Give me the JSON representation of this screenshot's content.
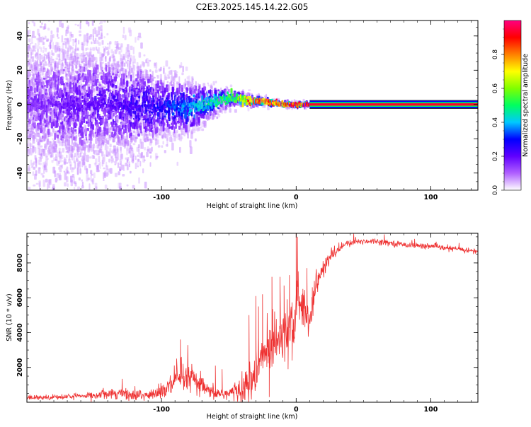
{
  "title": "C2E3.2025.145.14.22.G05",
  "chart_data": [
    {
      "type": "heatmap",
      "xlabel": "Height of straight line (km)",
      "ylabel": "Frequency (Hz)",
      "xlim": [
        -200,
        135
      ],
      "ylim": [
        -50,
        49
      ],
      "xticks": [
        -100,
        0,
        100
      ],
      "yticks": [
        -40,
        -20,
        0,
        20,
        40
      ],
      "colorbar": {
        "label": "Normalized spectral amplitude",
        "range": [
          0,
          1
        ],
        "ticks": [
          "0.0",
          "0.2",
          "0.4",
          "0.6",
          "0.8"
        ],
        "colormap": [
          "#ffffff",
          "#b060ff",
          "#6000ff",
          "#0000ff",
          "#00c8ff",
          "#00ff60",
          "#80ff00",
          "#ffff00",
          "#ff8000",
          "#ff0000",
          "#ff0080"
        ]
      },
      "profile": {
        "x": [
          -200,
          -180,
          -160,
          -140,
          -120,
          -100,
          -90,
          -80,
          -70,
          -60,
          -50,
          -45,
          -40,
          -35,
          -30,
          -25,
          -20,
          -15,
          -10,
          -5,
          0,
          5,
          10,
          135
        ],
        "center_hz": [
          0,
          0,
          0,
          0,
          -1,
          -2,
          -2,
          -2,
          0,
          2,
          4,
          4,
          3,
          2,
          2,
          2,
          1,
          1,
          0,
          0,
          0,
          0,
          0,
          0
        ],
        "spread_hz": [
          49,
          49,
          49,
          45,
          38,
          25,
          22,
          20,
          14,
          10,
          7,
          6,
          5,
          4,
          3,
          3,
          3,
          2,
          2,
          2,
          2,
          2,
          1,
          0.5
        ],
        "peak_amplitude": [
          0.15,
          0.18,
          0.2,
          0.22,
          0.25,
          0.3,
          0.35,
          0.4,
          0.45,
          0.5,
          0.55,
          0.6,
          0.7,
          0.8,
          0.85,
          0.88,
          0.9,
          0.9,
          0.92,
          0.92,
          0.95,
          0.95,
          0.95,
          0.95
        ]
      }
    },
    {
      "type": "line",
      "xlabel": "Height of straight line (km)",
      "ylabel": "SNR (10 * v/v)",
      "xlim": [
        -200,
        135
      ],
      "ylim": [
        0,
        9700
      ],
      "xticks": [
        -100,
        0,
        100
      ],
      "yticks": [
        2000,
        4000,
        6000,
        8000
      ],
      "series": [
        {
          "color": "#ee3030",
          "x": [
            -200,
            -180,
            -160,
            -150,
            -140,
            -130,
            -120,
            -110,
            -100,
            -95,
            -90,
            -85,
            -80,
            -75,
            -70,
            -65,
            -60,
            -55,
            -50,
            -45,
            -40,
            -35,
            -30,
            -25,
            -20,
            -15,
            -10,
            -5,
            -2,
            0,
            3,
            6,
            10,
            15,
            20,
            25,
            30,
            35,
            40,
            50,
            60,
            70,
            80,
            90,
            100,
            110,
            120,
            130,
            135
          ],
          "y": [
            250,
            300,
            350,
            400,
            550,
            500,
            400,
            400,
            600,
            800,
            1200,
            1300,
            1400,
            1200,
            900,
            600,
            500,
            500,
            500,
            600,
            800,
            1000,
            1500,
            2600,
            3200,
            3800,
            4200,
            4600,
            4200,
            5400,
            5700,
            5200,
            4800,
            6800,
            7600,
            8300,
            8700,
            9000,
            9150,
            9250,
            9250,
            9150,
            9050,
            9000,
            8950,
            8850,
            8800,
            8700,
            8650
          ],
          "noise": [
            150,
            150,
            150,
            200,
            300,
            350,
            350,
            350,
            450,
            650,
            800,
            900,
            900,
            800,
            600,
            400,
            350,
            400,
            450,
            600,
            800,
            1100,
            1400,
            1600,
            1700,
            1700,
            1700,
            1700,
            1700,
            1600,
            1400,
            1200,
            1000,
            800,
            600,
            400,
            300,
            200,
            200,
            180,
            170,
            160,
            160,
            160,
            160,
            160,
            160,
            160,
            160
          ],
          "spikes": [
            [
              -86,
              3600
            ],
            [
              -60,
              2100
            ],
            [
              -55,
              1900
            ],
            [
              -35,
              5000
            ],
            [
              -30,
              6100
            ],
            [
              -28,
              5500
            ],
            [
              -25,
              6200
            ],
            [
              -18,
              7200
            ],
            [
              -12,
              7200
            ],
            [
              -9,
              6700
            ],
            [
              -5,
              7300
            ],
            [
              0,
              9700
            ],
            [
              1,
              9500
            ],
            [
              5,
              6500
            ],
            [
              8,
              7700
            ],
            [
              12,
              6600
            ],
            [
              -3,
              2400
            ],
            [
              -6,
              1900
            ],
            [
              -20,
              300
            ],
            [
              -40,
              300
            ]
          ]
        }
      ]
    }
  ]
}
